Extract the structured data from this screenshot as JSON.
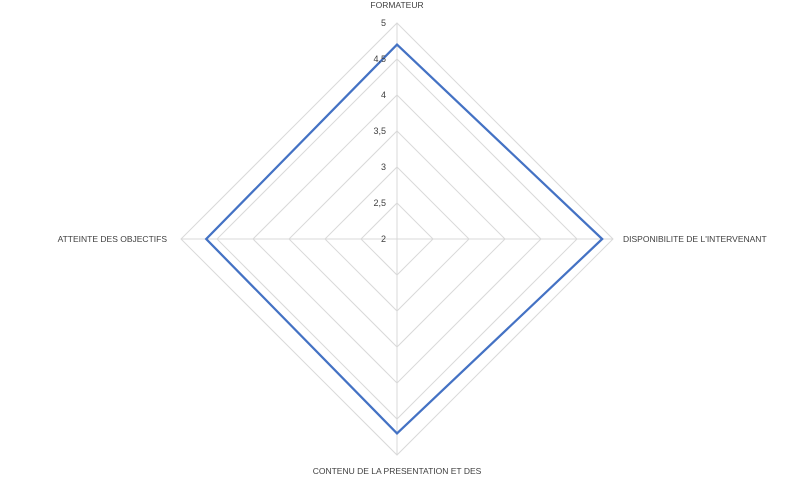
{
  "chart_data": {
    "type": "radar",
    "axes": [
      "FORMATEUR",
      "DISPONIBILITE DE L'INTERVENANT",
      "CONTENU DE LA PRESENTATION ET DES",
      "ATTEINTE DES OBJECTIFS"
    ],
    "series": [
      {
        "values": [
          4.7,
          4.85,
          4.7,
          4.65
        ]
      }
    ],
    "rlim": [
      2,
      5
    ],
    "ticks": [
      "2",
      "2,5",
      "3",
      "3,5",
      "4",
      "4,5",
      "5"
    ],
    "tick_values": [
      2,
      2.5,
      3,
      3.5,
      4,
      4.5,
      5
    ],
    "grid": true,
    "legend": "none",
    "colors": {
      "series": "#4472c4",
      "grid": "#d9d9d9",
      "text": "#404040"
    }
  }
}
